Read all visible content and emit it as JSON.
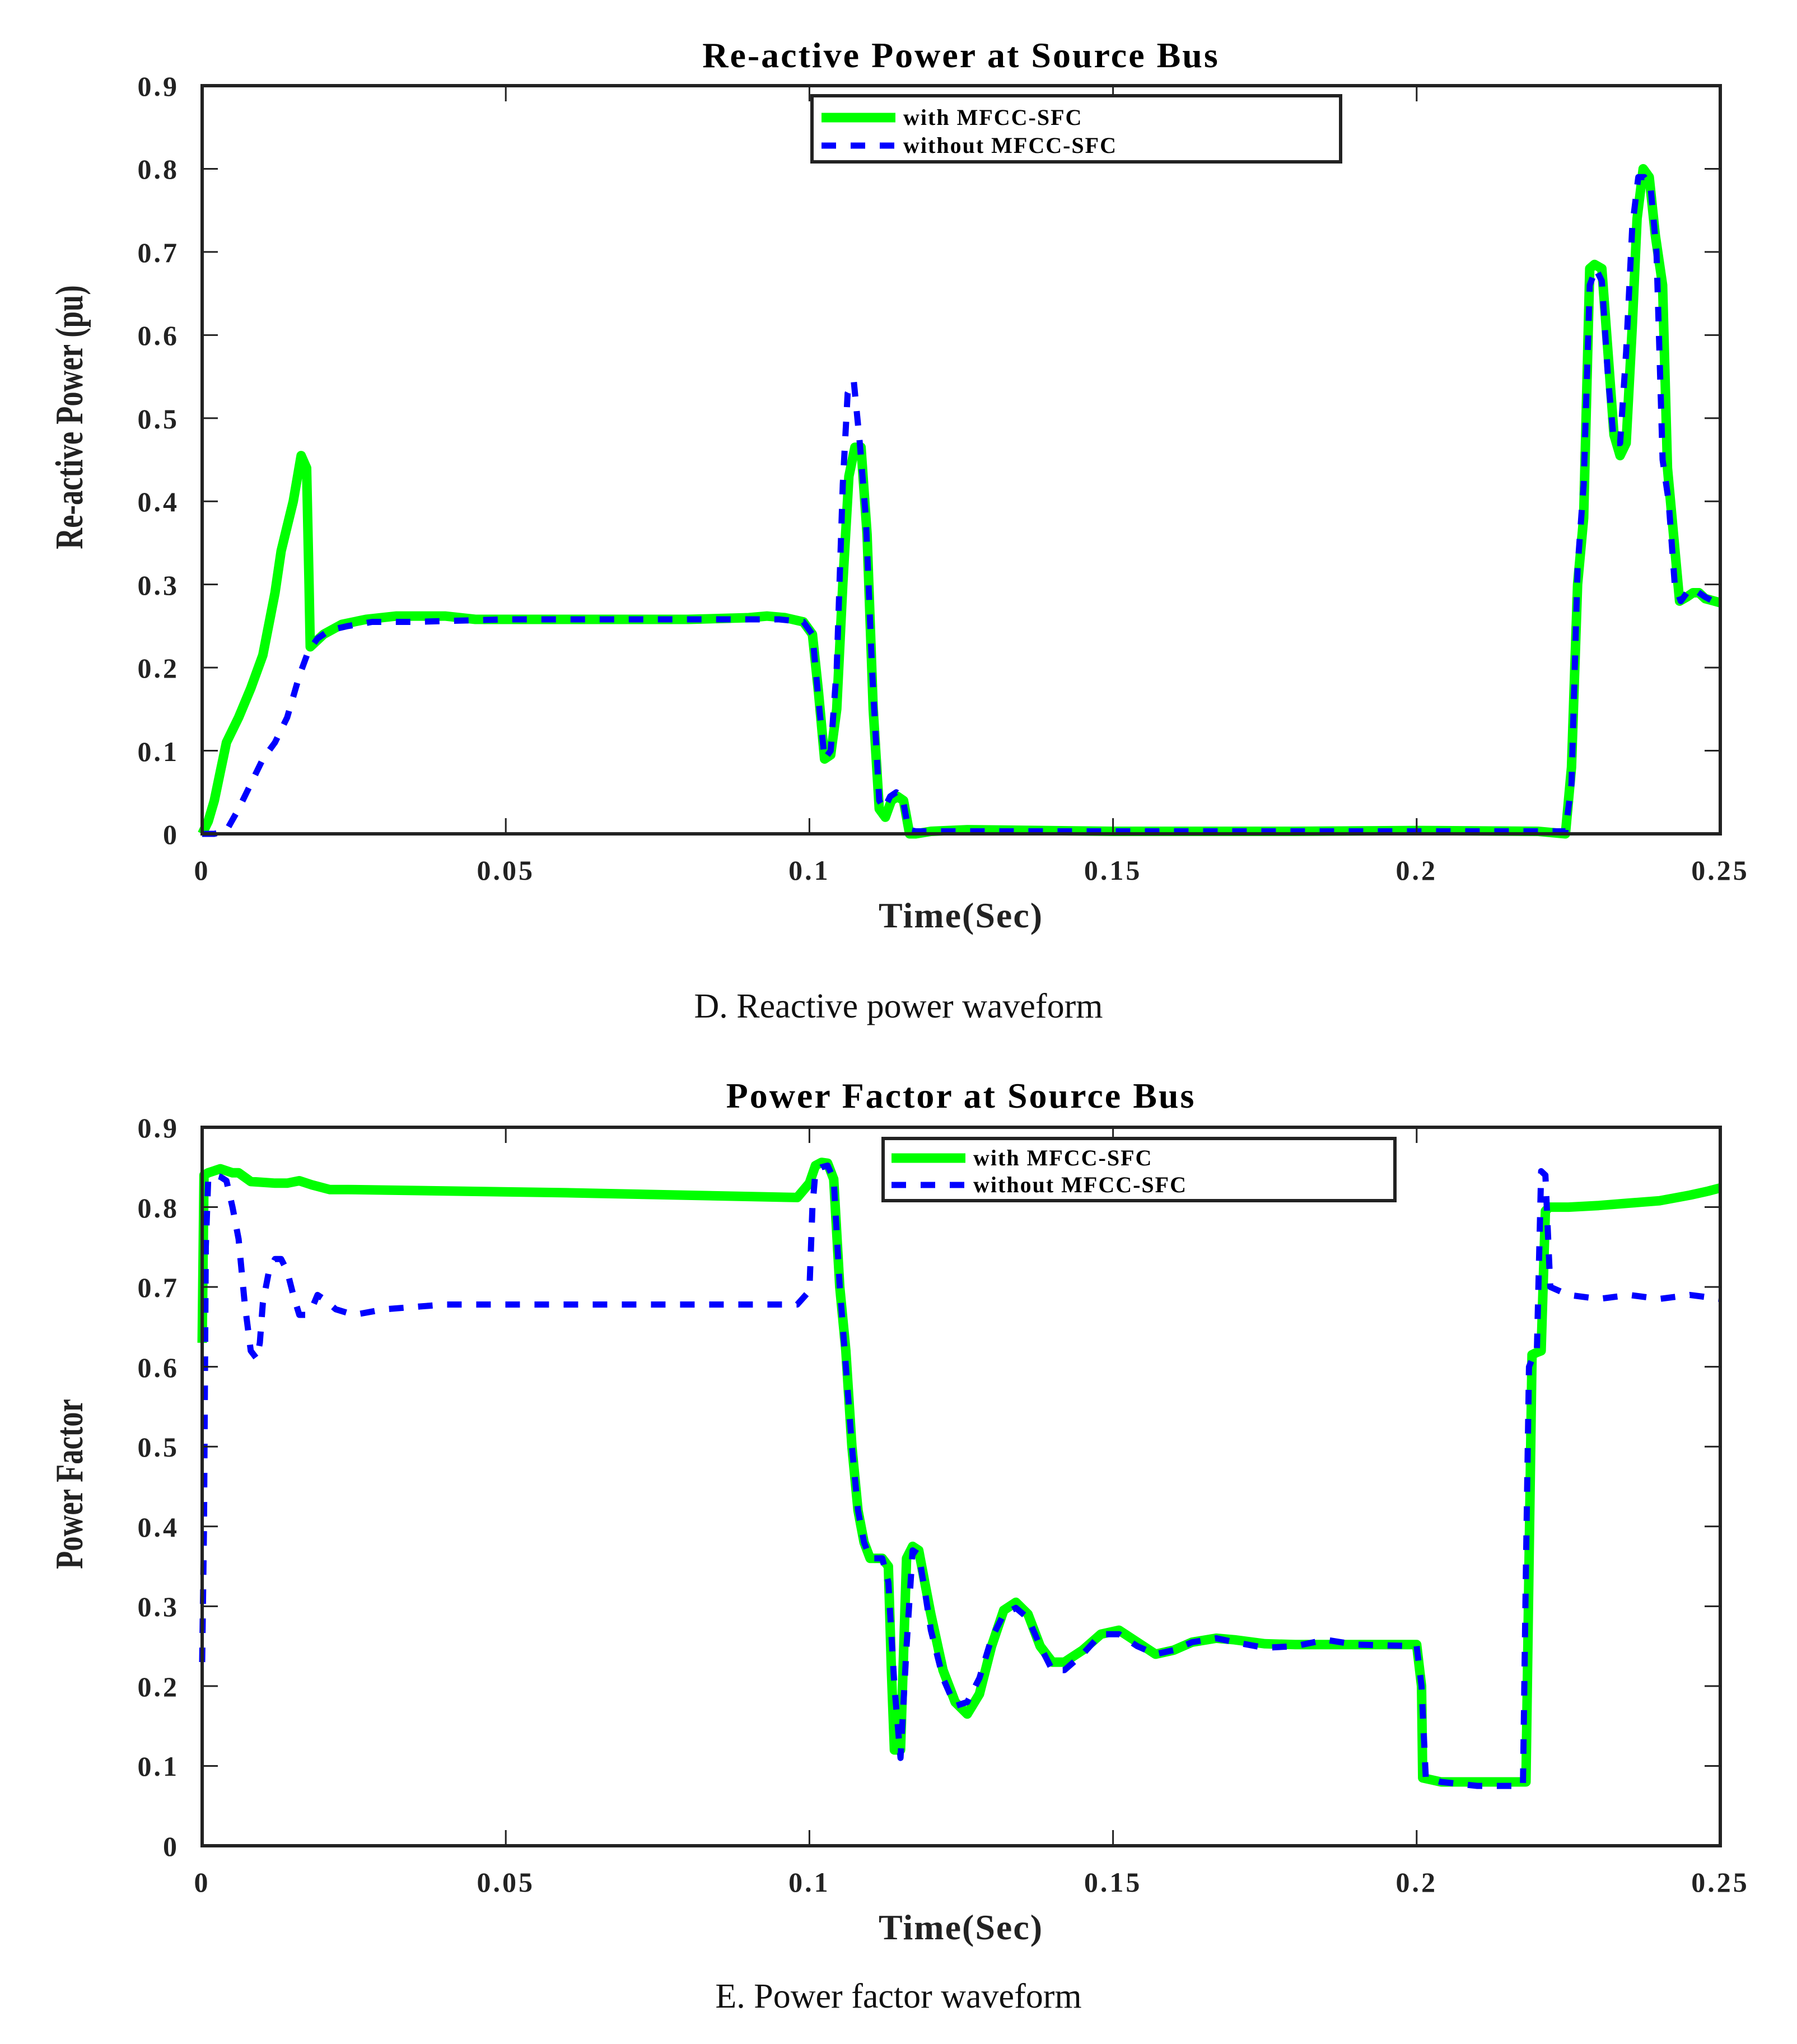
{
  "colors": {
    "with": "#00ff00",
    "without": "#0000ff",
    "axis": "#222222"
  },
  "legend": {
    "with_label": "with MFCC-SFC",
    "without_label": "without MFCC-SFC"
  },
  "chart_data": [
    {
      "type": "line",
      "title": "Re-active Power at Source Bus",
      "xlabel": "Time(Sec)",
      "ylabel": "Re-active Power (pu)",
      "caption": "D. Reactive power waveform",
      "xlim": [
        0,
        0.25
      ],
      "ylim": [
        0,
        0.9
      ],
      "xticks": [
        "0",
        "0.05",
        "0.1",
        "0.15",
        "0.2",
        "0.25"
      ],
      "xtick_values": [
        0,
        0.05,
        0.1,
        0.15,
        0.2,
        0.25
      ],
      "yticks": [
        "0",
        "0.1",
        "0.2",
        "0.3",
        "0.4",
        "0.5",
        "0.6",
        "0.7",
        "0.8",
        "0.9"
      ],
      "ytick_values": [
        0,
        0.1,
        0.2,
        0.3,
        0.4,
        0.5,
        0.6,
        0.7,
        0.8,
        0.9
      ],
      "grid": false,
      "legend_position": "upper center",
      "series": [
        {
          "name": "with MFCC-SFC",
          "style": "solid",
          "x": [
            0,
            0.001,
            0.002,
            0.003,
            0.004,
            0.006,
            0.008,
            0.01,
            0.012,
            0.013,
            0.014,
            0.015,
            0.0163,
            0.0172,
            0.0176,
            0.0178,
            0.02,
            0.023,
            0.027,
            0.032,
            0.04,
            0.045,
            0.05,
            0.06,
            0.07,
            0.08,
            0.09,
            0.093,
            0.096,
            0.099,
            0.1005,
            0.1015,
            0.1025,
            0.1035,
            0.1045,
            0.1055,
            0.1065,
            0.1075,
            0.1085,
            0.1095,
            0.1105,
            0.1115,
            0.1125,
            0.1135,
            0.1145,
            0.1155,
            0.1165,
            0.1175,
            0.12,
            0.126,
            0.15,
            0.18,
            0.2,
            0.22,
            0.2245,
            0.2255,
            0.2265,
            0.2275,
            0.2285,
            0.2293,
            0.2305,
            0.2315,
            0.2325,
            0.2335,
            0.2345,
            0.2355,
            0.2363,
            0.2373,
            0.2383,
            0.2393,
            0.2405,
            0.2413,
            0.2423,
            0.2433,
            0.2445,
            0.2455,
            0.2465,
            0.2475,
            0.25
          ],
          "y": [
            0.0,
            0.015,
            0.04,
            0.075,
            0.11,
            0.14,
            0.175,
            0.215,
            0.29,
            0.34,
            0.37,
            0.4,
            0.455,
            0.44,
            0.3,
            0.225,
            0.24,
            0.252,
            0.258,
            0.262,
            0.262,
            0.258,
            0.258,
            0.258,
            0.258,
            0.258,
            0.26,
            0.262,
            0.26,
            0.255,
            0.24,
            0.17,
            0.09,
            0.095,
            0.15,
            0.3,
            0.43,
            0.465,
            0.465,
            0.36,
            0.15,
            0.03,
            0.02,
            0.04,
            0.045,
            0.04,
            0.0,
            0.0,
            0.003,
            0.005,
            0.003,
            0.003,
            0.004,
            0.003,
            0.0,
            0.08,
            0.3,
            0.38,
            0.68,
            0.685,
            0.68,
            0.58,
            0.48,
            0.455,
            0.47,
            0.61,
            0.74,
            0.8,
            0.79,
            0.72,
            0.66,
            0.44,
            0.36,
            0.28,
            0.285,
            0.29,
            0.29,
            0.283,
            0.278
          ]
        },
        {
          "name": "without MFCC-SFC",
          "style": "dashed",
          "x": [
            0,
            0.002,
            0.004,
            0.006,
            0.008,
            0.01,
            0.012,
            0.014,
            0.016,
            0.0175,
            0.019,
            0.021,
            0.024,
            0.028,
            0.035,
            0.05,
            0.07,
            0.09,
            0.095,
            0.099,
            0.1005,
            0.1015,
            0.1025,
            0.1035,
            0.1045,
            0.1055,
            0.1063,
            0.1073,
            0.1083,
            0.1093,
            0.1103,
            0.1115,
            0.1123,
            0.1133,
            0.1143,
            0.1153,
            0.1163,
            0.1175,
            0.122,
            0.15,
            0.18,
            0.2,
            0.22,
            0.2245,
            0.2255,
            0.2265,
            0.2275,
            0.2285,
            0.2295,
            0.2305,
            0.2315,
            0.2325,
            0.2335,
            0.2345,
            0.2355,
            0.2365,
            0.2375,
            0.2385,
            0.2395,
            0.2405,
            0.2415,
            0.2425,
            0.2435,
            0.2445,
            0.2455,
            0.2465,
            0.2475,
            0.25
          ],
          "y": [
            0.0,
            0.0,
            0.004,
            0.03,
            0.06,
            0.09,
            0.11,
            0.14,
            0.19,
            0.22,
            0.235,
            0.245,
            0.25,
            0.255,
            0.255,
            0.258,
            0.258,
            0.258,
            0.258,
            0.255,
            0.24,
            0.16,
            0.09,
            0.1,
            0.2,
            0.42,
            0.53,
            0.545,
            0.47,
            0.38,
            0.2,
            0.04,
            0.03,
            0.045,
            0.05,
            0.045,
            0.005,
            0.003,
            0.003,
            0.003,
            0.003,
            0.003,
            0.003,
            0.003,
            0.06,
            0.32,
            0.42,
            0.66,
            0.68,
            0.665,
            0.55,
            0.47,
            0.47,
            0.58,
            0.73,
            0.79,
            0.79,
            0.78,
            0.7,
            0.45,
            0.4,
            0.3,
            0.28,
            0.29,
            0.295,
            0.29,
            0.285,
            0.275
          ]
        }
      ]
    },
    {
      "type": "line",
      "title": "Power Factor at Source Bus",
      "xlabel": "Time(Sec)",
      "ylabel": "Power Factor",
      "caption": "E. Power factor waveform",
      "xlim": [
        0,
        0.25
      ],
      "ylim": [
        0,
        0.9
      ],
      "xticks": [
        "0",
        "0.05",
        "0.1",
        "0.15",
        "0.2",
        "0.25"
      ],
      "xtick_values": [
        0,
        0.05,
        0.1,
        0.15,
        0.2,
        0.25
      ],
      "yticks": [
        "0",
        "0.1",
        "0.2",
        "0.3",
        "0.4",
        "0.5",
        "0.6",
        "0.7",
        "0.8",
        "0.9"
      ],
      "ytick_values": [
        0,
        0.1,
        0.2,
        0.3,
        0.4,
        0.5,
        0.6,
        0.7,
        0.8,
        0.9
      ],
      "grid": false,
      "legend_position": "upper right",
      "series": [
        {
          "name": "with MFCC-SFC",
          "style": "solid",
          "x": [
            0,
            0.0003,
            0.001,
            0.003,
            0.005,
            0.006,
            0.008,
            0.012,
            0.014,
            0.016,
            0.018,
            0.021,
            0.024,
            0.06,
            0.098,
            0.1,
            0.101,
            0.102,
            0.103,
            0.104,
            0.105,
            0.106,
            0.107,
            0.108,
            0.109,
            0.11,
            0.111,
            0.112,
            0.113,
            0.1135,
            0.114,
            0.115,
            0.116,
            0.117,
            0.118,
            0.119,
            0.12,
            0.122,
            0.124,
            0.126,
            0.128,
            0.13,
            0.132,
            0.134,
            0.136,
            0.138,
            0.14,
            0.142,
            0.145,
            0.148,
            0.151,
            0.154,
            0.157,
            0.16,
            0.163,
            0.167,
            0.17,
            0.175,
            0.18,
            0.19,
            0.2,
            0.2008,
            0.201,
            0.204,
            0.21,
            0.218,
            0.2185,
            0.219,
            0.2198,
            0.2205,
            0.2212,
            0.2218,
            0.2225,
            0.225,
            0.23,
            0.235,
            0.24,
            0.245,
            0.248,
            0.25
          ],
          "y": [
            0.63,
            0.84,
            0.843,
            0.848,
            0.843,
            0.843,
            0.832,
            0.83,
            0.83,
            0.833,
            0.828,
            0.822,
            0.822,
            0.818,
            0.812,
            0.83,
            0.852,
            0.856,
            0.855,
            0.835,
            0.7,
            0.62,
            0.5,
            0.42,
            0.38,
            0.36,
            0.36,
            0.36,
            0.35,
            0.22,
            0.12,
            0.12,
            0.36,
            0.375,
            0.37,
            0.33,
            0.29,
            0.22,
            0.18,
            0.165,
            0.19,
            0.25,
            0.295,
            0.305,
            0.29,
            0.25,
            0.23,
            0.23,
            0.245,
            0.265,
            0.27,
            0.255,
            0.24,
            0.245,
            0.255,
            0.26,
            0.258,
            0.253,
            0.252,
            0.252,
            0.252,
            0.2,
            0.085,
            0.08,
            0.08,
            0.08,
            0.35,
            0.615,
            0.618,
            0.62,
            0.795,
            0.8,
            0.8,
            0.8,
            0.802,
            0.805,
            0.808,
            0.815,
            0.82,
            0.824
          ]
        },
        {
          "name": "without MFCC-SFC",
          "style": "dashed",
          "x": [
            0,
            0.0003,
            0.0006,
            0.001,
            0.002,
            0.003,
            0.004,
            0.005,
            0.006,
            0.007,
            0.008,
            0.009,
            0.0095,
            0.01,
            0.011,
            0.012,
            0.013,
            0.014,
            0.015,
            0.016,
            0.017,
            0.018,
            0.019,
            0.02,
            0.022,
            0.025,
            0.03,
            0.04,
            0.06,
            0.08,
            0.098,
            0.1,
            0.1005,
            0.101,
            0.102,
            0.103,
            0.104,
            0.105,
            0.106,
            0.107,
            0.108,
            0.109,
            0.11,
            0.111,
            0.112,
            0.113,
            0.114,
            0.115,
            0.116,
            0.117,
            0.118,
            0.119,
            0.12,
            0.122,
            0.124,
            0.126,
            0.128,
            0.13,
            0.132,
            0.134,
            0.136,
            0.138,
            0.14,
            0.142,
            0.145,
            0.148,
            0.151,
            0.154,
            0.157,
            0.16,
            0.163,
            0.167,
            0.17,
            0.175,
            0.18,
            0.185,
            0.19,
            0.2,
            0.2008,
            0.2015,
            0.204,
            0.21,
            0.2175,
            0.218,
            0.2185,
            0.2193,
            0.2198,
            0.2205,
            0.2212,
            0.222,
            0.225,
            0.23,
            0.235,
            0.24,
            0.245,
            0.25
          ],
          "y": [
            0.23,
            0.4,
            0.75,
            0.835,
            0.84,
            0.838,
            0.833,
            0.8,
            0.76,
            0.68,
            0.62,
            0.61,
            0.63,
            0.68,
            0.72,
            0.735,
            0.735,
            0.72,
            0.69,
            0.665,
            0.665,
            0.672,
            0.69,
            0.685,
            0.672,
            0.665,
            0.672,
            0.678,
            0.678,
            0.678,
            0.678,
            0.695,
            0.8,
            0.845,
            0.85,
            0.852,
            0.835,
            0.7,
            0.6,
            0.5,
            0.42,
            0.38,
            0.36,
            0.36,
            0.36,
            0.33,
            0.2,
            0.11,
            0.25,
            0.37,
            0.365,
            0.32,
            0.27,
            0.21,
            0.175,
            0.18,
            0.21,
            0.26,
            0.29,
            0.298,
            0.285,
            0.25,
            0.22,
            0.22,
            0.24,
            0.265,
            0.265,
            0.25,
            0.24,
            0.245,
            0.255,
            0.26,
            0.255,
            0.248,
            0.25,
            0.258,
            0.252,
            0.25,
            0.2,
            0.085,
            0.08,
            0.075,
            0.075,
            0.35,
            0.6,
            0.615,
            0.62,
            0.845,
            0.84,
            0.7,
            0.69,
            0.685,
            0.69,
            0.685,
            0.69,
            0.685
          ]
        }
      ]
    }
  ]
}
